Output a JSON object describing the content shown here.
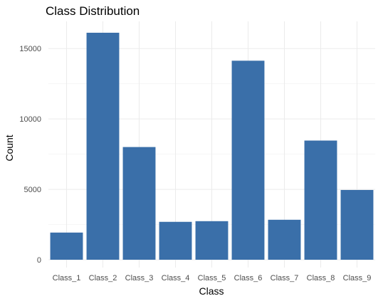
{
  "chart_data": {
    "type": "bar",
    "title": "Class Distribution",
    "xlabel": "Class",
    "ylabel": "Count",
    "categories": [
      "Class_1",
      "Class_2",
      "Class_3",
      "Class_4",
      "Class_5",
      "Class_6",
      "Class_7",
      "Class_8",
      "Class_9"
    ],
    "values": [
      1929,
      16122,
      8004,
      2691,
      2739,
      14135,
      2839,
      8464,
      4955
    ],
    "ylim": [
      0,
      16900
    ],
    "yticks": [
      0,
      5000,
      10000,
      15000
    ],
    "bar_color": "#3a6fa9",
    "grid": true
  }
}
